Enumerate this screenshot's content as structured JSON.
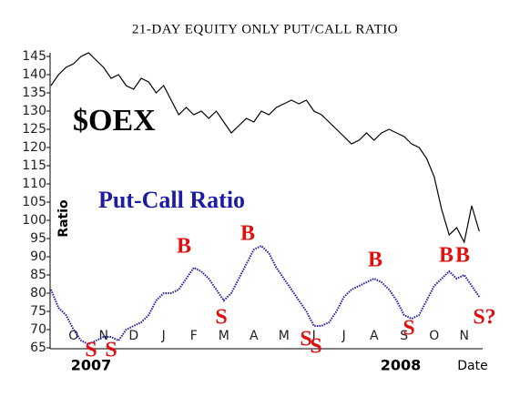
{
  "chart_data": {
    "type": "line",
    "title": "21-DAY EQUITY ONLY PUT/CALL RATIO",
    "y_label": "Ratio",
    "categories": [
      null,
      null,
      null,
      "O",
      null,
      null,
      null,
      "N",
      null,
      null,
      null,
      "D",
      null,
      null,
      null,
      "J",
      null,
      null,
      null,
      "F",
      null,
      null,
      null,
      "M",
      null,
      null,
      null,
      "A",
      null,
      null,
      null,
      "M",
      null,
      null,
      null,
      "J",
      null,
      null,
      null,
      "J",
      null,
      null,
      null,
      "A",
      null,
      null,
      null,
      "S",
      null,
      null,
      null,
      "O",
      null,
      null,
      null,
      "N",
      null,
      null
    ],
    "period_labels": [
      "2007",
      "2008",
      "Date"
    ],
    "series": [
      {
        "name": "$OEX",
        "color": "#000000",
        "values": [
          137,
          140,
          142,
          143,
          145,
          146,
          144,
          142,
          139,
          140,
          137,
          136,
          139,
          138,
          135,
          137,
          133,
          129,
          131,
          129,
          130,
          128,
          130,
          127,
          124,
          126,
          128,
          127,
          130,
          129,
          131,
          132,
          133,
          132,
          133,
          130,
          129,
          127,
          125,
          123,
          121,
          122,
          124,
          122,
          124,
          125,
          124,
          123,
          121,
          120,
          117,
          112,
          103,
          96,
          98,
          94,
          104,
          97
        ]
      },
      {
        "name": "Put-Call Ratio",
        "color": "#1c1ca8",
        "values": [
          81,
          76,
          74,
          70,
          67,
          66,
          67,
          68,
          68,
          67,
          70,
          71,
          72,
          74,
          78,
          80,
          80,
          81,
          84,
          87,
          86,
          84,
          81,
          78,
          80,
          84,
          88,
          92,
          93,
          91,
          87,
          84,
          81,
          78,
          75,
          71,
          71,
          72,
          75,
          79,
          81,
          82,
          83,
          84,
          83,
          81,
          78,
          74,
          73,
          74,
          78,
          82,
          84,
          86,
          84,
          85,
          82,
          79
        ]
      }
    ],
    "annotations": [
      "B",
      "B",
      "B",
      "B",
      "B",
      "S",
      "S",
      "S",
      "S",
      "S",
      "S",
      "S?"
    ],
    "annotation_color": "#e01010",
    "ylim": [
      65,
      145
    ],
    "yticks": [
      65,
      70,
      75,
      80,
      85,
      90,
      95,
      100,
      105,
      110,
      115,
      120,
      125,
      130,
      135,
      140,
      145
    ]
  }
}
